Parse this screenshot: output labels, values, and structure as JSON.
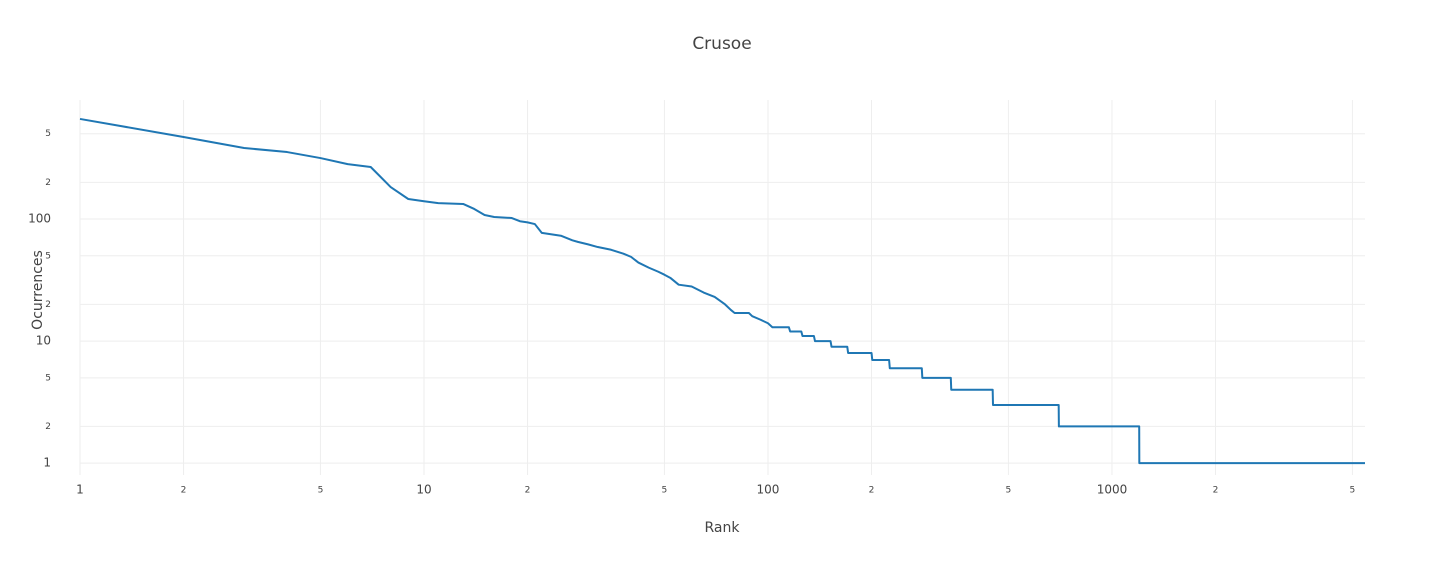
{
  "chart_data": {
    "type": "line",
    "title": "Crusoe",
    "x_label": "Rank",
    "y_label": "Ocurrences",
    "x_scale": "log",
    "y_scale": "log",
    "grid": true,
    "xlim": [
      1,
      5440
    ],
    "ylim": [
      0.8,
      945
    ],
    "xticks": [
      1,
      2,
      5,
      10,
      {
        "value": 20,
        "label": "2"
      },
      {
        "value": 50,
        "label": "5"
      },
      100,
      {
        "value": 200,
        "label": "2"
      },
      {
        "value": 500,
        "label": "5"
      },
      1000,
      {
        "value": 2000,
        "label": "2"
      },
      {
        "value": 5000,
        "label": "5"
      }
    ],
    "yticks": [
      1,
      2,
      5,
      10,
      {
        "value": 20,
        "label": "2"
      },
      {
        "value": 50,
        "label": "5"
      },
      100,
      {
        "value": 200,
        "label": "2"
      },
      {
        "value": 500,
        "label": "5"
      }
    ],
    "x": [
      1,
      2,
      3,
      4,
      5,
      6,
      7,
      8,
      9,
      10,
      11,
      13,
      14,
      15,
      16,
      18,
      19,
      20,
      21,
      22,
      25,
      27,
      28,
      30,
      32,
      35,
      38,
      40,
      42,
      45,
      48,
      50,
      52,
      55,
      60,
      65,
      70,
      75,
      78,
      80,
      88,
      90,
      95,
      100,
      103,
      115,
      116,
      125,
      126,
      136,
      137,
      152,
      153,
      170,
      171,
      200,
      201,
      225,
      226,
      280,
      281,
      340,
      341,
      450,
      451,
      700,
      701,
      1200,
      1201,
      5440
    ],
    "series": [
      {
        "name": "Ocurrences",
        "color": "#1f77b4",
        "values": [
          661,
          470,
          382,
          354,
          316,
          282,
          267,
          183,
          146,
          140,
          135,
          133,
          121,
          108,
          104,
          102,
          96,
          94,
          91,
          77,
          73,
          67,
          65,
          62,
          59,
          56,
          52,
          49,
          44,
          40,
          37,
          35,
          33,
          29,
          28,
          25,
          23,
          20,
          18,
          17,
          17,
          16,
          15,
          14,
          13,
          13,
          12,
          12,
          11,
          11,
          10,
          10,
          9,
          9,
          8,
          8,
          7,
          7,
          6,
          6,
          5,
          5,
          4,
          4,
          3,
          3,
          2,
          2,
          1,
          1
        ]
      }
    ]
  }
}
